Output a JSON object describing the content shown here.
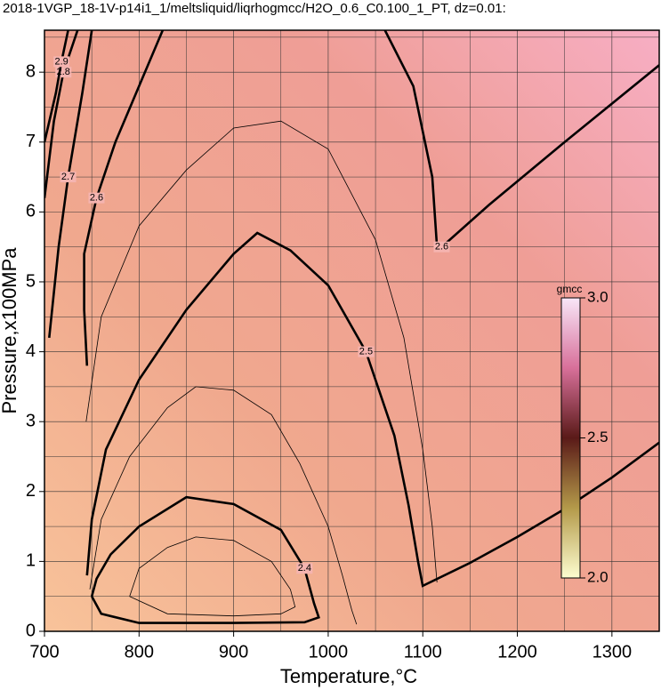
{
  "chart_data": {
    "type": "contour",
    "title": "2018-1VGP_18-1V-p14i1_1/meltsliquid/liqrhogmcc/H2O_0.6_C0.100_1_PT, dz=0.01:",
    "x_label": "Temperature,°C",
    "y_label": "Pressure,x100MPa",
    "xlim": [
      700,
      1350
    ],
    "ylim": [
      0,
      8.6
    ],
    "xticks": [
      700,
      800,
      900,
      1000,
      1100,
      1200,
      1300
    ],
    "yticks": [
      0,
      1,
      2,
      3,
      4,
      5,
      6,
      7,
      8
    ],
    "xgrid": [
      750,
      850,
      950,
      1050,
      1150,
      1250
    ],
    "ygrid": [
      0.5,
      1.5,
      2.5,
      3.5,
      4.5,
      5.5,
      6.5,
      7.5,
      8.5
    ],
    "grid": true,
    "contours": [
      {
        "level": 2.35,
        "label": null,
        "x": [
          790,
          800,
          830,
          860,
          900,
          940,
          960,
          965,
          950,
          900,
          830,
          790
        ],
        "y": [
          0.5,
          0.9,
          1.2,
          1.35,
          1.3,
          1.0,
          0.6,
          0.35,
          0.25,
          0.22,
          0.25,
          0.5
        ]
      },
      {
        "level": 2.4,
        "label": "2.4",
        "x": [
          750,
          755,
          770,
          800,
          850,
          900,
          950,
          975,
          985,
          990,
          975,
          900,
          800,
          760,
          750
        ],
        "y": [
          0.5,
          0.75,
          1.1,
          1.5,
          1.92,
          1.82,
          1.45,
          0.9,
          0.4,
          0.2,
          0.13,
          0.12,
          0.12,
          0.25,
          0.5
        ]
      },
      {
        "level": 2.45,
        "label": null,
        "x": [
          748,
          760,
          790,
          830,
          860,
          900,
          940,
          970,
          1000,
          1015,
          1025,
          1030
        ],
        "y": [
          0.6,
          1.6,
          2.5,
          3.2,
          3.5,
          3.45,
          3.1,
          2.4,
          1.5,
          0.8,
          0.3,
          0.1
        ]
      },
      {
        "level": 2.5,
        "label": "2.5",
        "x": [
          745,
          750,
          765,
          800,
          850,
          900,
          925,
          960,
          1000,
          1040,
          1070,
          1085,
          1095,
          1100,
          1150,
          1200,
          1250,
          1300,
          1350
        ],
        "y": [
          0.8,
          1.6,
          2.6,
          3.6,
          4.6,
          5.4,
          5.7,
          5.45,
          4.95,
          4.0,
          2.8,
          1.8,
          1.0,
          0.65,
          0.98,
          1.35,
          1.75,
          2.2,
          2.7
        ]
      },
      {
        "level": 2.55,
        "label": null,
        "x": [
          744,
          760,
          800,
          850,
          900,
          950,
          1000,
          1050,
          1080,
          1100,
          1110,
          1115
        ],
        "y": [
          3.0,
          4.5,
          5.8,
          6.6,
          7.2,
          7.3,
          6.9,
          5.6,
          4.2,
          2.6,
          1.5,
          0.7
        ]
      },
      {
        "level": 2.6,
        "label": "2.6",
        "x": [
          745,
          742,
          742,
          755,
          775,
          800,
          825
        ],
        "y": [
          3.8,
          4.6,
          5.4,
          6.2,
          7.0,
          7.8,
          8.6
        ]
      },
      {
        "level": 2.6,
        "label": "2.6",
        "x": [
          1060,
          1090,
          1110,
          1115,
          1120,
          1170,
          1250,
          1350
        ],
        "y": [
          8.6,
          7.8,
          6.5,
          5.5,
          5.5,
          6.1,
          7.0,
          8.1
        ]
      },
      {
        "level": 2.7,
        "label": "2.7",
        "x": [
          705,
          715,
          725,
          740,
          750
        ],
        "y": [
          4.2,
          5.5,
          6.5,
          7.7,
          8.6
        ]
      },
      {
        "level": 2.8,
        "label": "2.8",
        "x": [
          700,
          710,
          720,
          735
        ],
        "y": [
          6.2,
          7.3,
          8.0,
          8.6
        ]
      },
      {
        "level": 2.9,
        "label": "2.9",
        "x": [
          700,
          712,
          718,
          725
        ],
        "y": [
          7.0,
          7.7,
          8.15,
          8.6
        ]
      }
    ],
    "colorbar": {
      "label": "gmcc",
      "clim": [
        2.0,
        3.0
      ],
      "ticks": [
        {
          "value": 2.0,
          "label": "2.0"
        },
        {
          "value": 2.5,
          "label": "2.5"
        },
        {
          "value": 3.0,
          "label": "3.0"
        }
      ]
    }
  }
}
